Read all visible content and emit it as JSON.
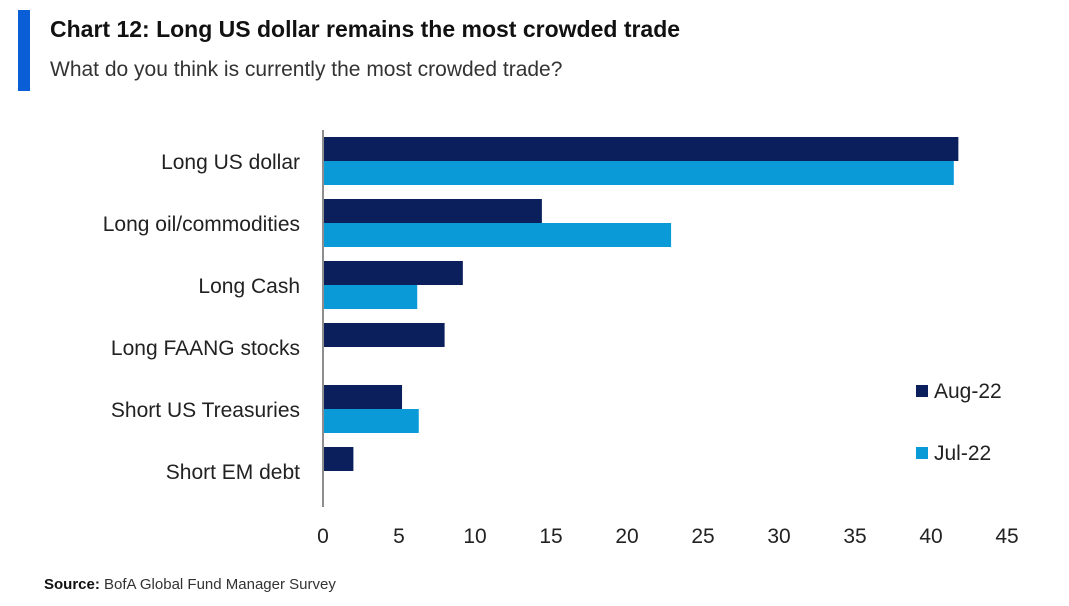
{
  "header": {
    "title": "Chart 12: Long US dollar remains the most crowded trade",
    "subtitle": "What do you think is currently the most crowded trade?"
  },
  "footer": {
    "source_label": "Source:",
    "source_text": "BofA Global Fund Manager Survey"
  },
  "colors": {
    "accent": "#0a5fd6",
    "aug22": "#0b1f5c",
    "jul22": "#0a9ad8"
  },
  "chart_data": {
    "type": "bar",
    "orientation": "horizontal",
    "categories": [
      "Long US dollar",
      "Long oil/commodities",
      "Long Cash",
      "Long FAANG stocks",
      "Short US Treasuries",
      "Short EM debt"
    ],
    "series": [
      {
        "name": "Aug-22",
        "color": "#0b1f5c",
        "values": [
          41.8,
          14.4,
          9.2,
          8.0,
          5.2,
          2.0
        ]
      },
      {
        "name": "Jul-22",
        "color": "#0a9ad8",
        "values": [
          41.5,
          22.9,
          6.2,
          null,
          6.3,
          null
        ]
      }
    ],
    "xlim": [
      0,
      45
    ],
    "xticks": [
      0,
      5,
      10,
      15,
      20,
      25,
      30,
      35,
      40,
      45
    ],
    "grid": false,
    "legend_position": "right"
  }
}
